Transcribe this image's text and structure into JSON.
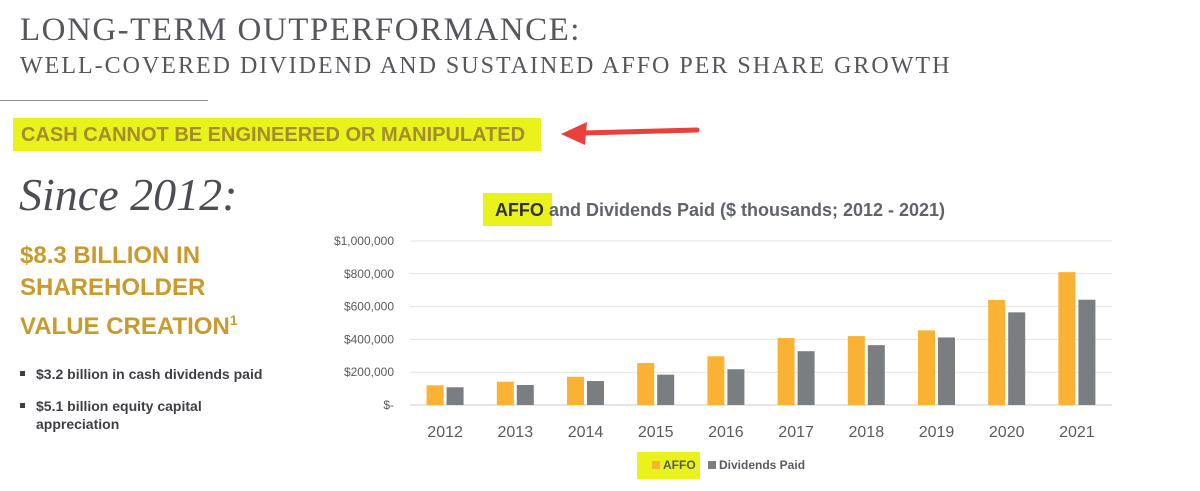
{
  "header": {
    "title": "LONG-TERM OUTPERFORMANCE:",
    "subtitle": "WELL-COVERED DIVIDEND AND SUSTAINED AFFO PER SHARE GROWTH"
  },
  "callout": {
    "text": "CASH CANNOT BE ENGINEERED OR MANIPULATED"
  },
  "summary": {
    "since": "Since 2012:",
    "headline": "$8.3 BILLION IN SHAREHOLDER VALUE CREATION",
    "footnote": "1",
    "bullets": [
      "$3.2 billion in cash dividends paid",
      "$5.1 billion equity capital appreciation"
    ]
  },
  "colors": {
    "affo": "#f9b233",
    "dividends": "#7a7d82",
    "highlight": "#e9f21a",
    "arrow": "#e9403b",
    "gold_text": "#c99a2e"
  },
  "chart_data": {
    "type": "bar",
    "title_highlight": "AFFO",
    "title_rest": " and Dividends Paid ($ thousands; 2012 - 2021)",
    "categories": [
      "2012",
      "2013",
      "2014",
      "2015",
      "2016",
      "2017",
      "2018",
      "2019",
      "2020",
      "2021"
    ],
    "series": [
      {
        "name": "AFFO",
        "values": [
          120000,
          142000,
          172000,
          256000,
          297000,
          408000,
          420000,
          455000,
          640000,
          810000
        ]
      },
      {
        "name": "Dividends Paid",
        "values": [
          108000,
          122000,
          146000,
          185000,
          218000,
          328000,
          365000,
          412000,
          565000,
          642000
        ]
      }
    ],
    "ylim": [
      0,
      1000000
    ],
    "y_ticks": [
      0,
      200000,
      400000,
      600000,
      800000,
      1000000
    ],
    "y_tick_labels": [
      "$-",
      "$200,000",
      "$400,000",
      "$600,000",
      "$800,000",
      "$1,000,000"
    ],
    "grid": true,
    "legend": "bottom-center"
  }
}
